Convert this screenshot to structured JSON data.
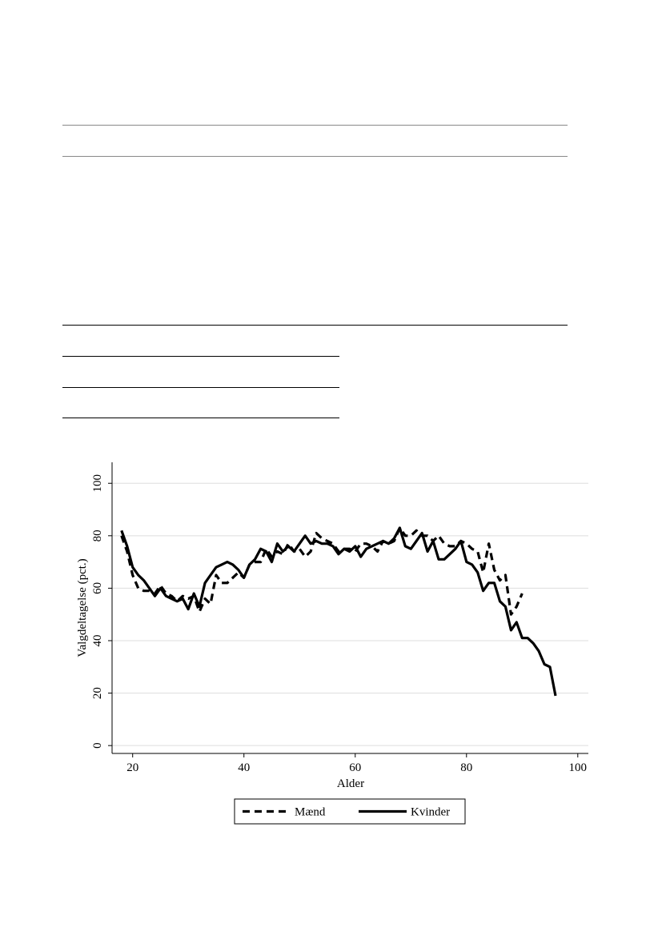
{
  "chart_data": {
    "type": "line",
    "xlabel": "Alder",
    "ylabel": "Valgdeltagelse (pct.)",
    "xlim": [
      16.3,
      101.9
    ],
    "ylim": [
      -3,
      108
    ],
    "xticks": [
      20,
      40,
      60,
      80,
      100
    ],
    "yticks": [
      0,
      20,
      40,
      60,
      80,
      100
    ],
    "grid": true,
    "legend": "bottom",
    "series": [
      {
        "name": "Mænd",
        "color": "#000000",
        "dash": true,
        "x": [
          18,
          19,
          20,
          21,
          22,
          23,
          24,
          25,
          26,
          27,
          28,
          29,
          30,
          31,
          32,
          33,
          34,
          35,
          36,
          37,
          38,
          39,
          40,
          41,
          42,
          43,
          44,
          45,
          46,
          47,
          48,
          49,
          50,
          51,
          52,
          53,
          54,
          55,
          56,
          57,
          58,
          59,
          60,
          61,
          62,
          63,
          64,
          65,
          66,
          67,
          68,
          69,
          70,
          71,
          72,
          73,
          74,
          75,
          76,
          77,
          78,
          79,
          80,
          81,
          82,
          83,
          84,
          85,
          86,
          87,
          88,
          89,
          90
        ],
        "values": [
          80,
          74,
          65,
          60,
          59,
          59,
          58,
          61,
          58,
          57,
          55,
          57,
          56,
          57,
          51,
          56,
          54,
          65,
          62,
          62,
          64,
          66,
          64,
          69,
          70,
          70,
          75,
          72,
          74,
          73,
          77,
          74,
          75,
          72,
          74,
          81,
          79,
          78,
          77,
          74,
          75,
          75,
          74,
          77,
          77,
          76,
          74,
          78,
          77,
          78,
          83,
          80,
          80,
          82,
          80,
          80,
          78,
          80,
          77,
          76,
          76,
          78,
          77,
          75,
          74,
          66,
          77,
          67,
          63,
          65,
          50,
          53,
          58
        ]
      },
      {
        "name": "Kvinder",
        "color": "#000000",
        "dash": false,
        "x": [
          18,
          19,
          20,
          21,
          22,
          23,
          24,
          25,
          26,
          27,
          28,
          29,
          30,
          31,
          32,
          33,
          34,
          35,
          36,
          37,
          38,
          39,
          40,
          41,
          42,
          43,
          44,
          45,
          46,
          47,
          48,
          49,
          50,
          51,
          52,
          53,
          54,
          55,
          56,
          57,
          58,
          59,
          60,
          61,
          62,
          63,
          64,
          65,
          66,
          67,
          68,
          69,
          70,
          71,
          72,
          73,
          74,
          75,
          76,
          77,
          78,
          79,
          80,
          81,
          82,
          83,
          84,
          85,
          86,
          87,
          88,
          89,
          90,
          91,
          92,
          93,
          94,
          95,
          96
        ],
        "values": [
          82,
          76,
          68,
          65,
          63,
          60,
          57,
          60,
          57,
          56,
          55,
          56,
          52,
          58,
          53,
          62,
          65,
          68,
          69,
          70,
          69,
          67,
          64,
          69,
          71,
          75,
          74,
          70,
          77,
          74,
          76,
          74,
          77,
          80,
          77,
          78,
          77,
          77,
          76,
          73,
          75,
          74,
          76,
          72,
          75,
          76,
          77,
          78,
          77,
          79,
          83,
          76,
          75,
          78,
          81,
          74,
          78,
          71,
          71,
          73,
          75,
          78,
          70,
          69,
          66,
          59,
          62,
          62,
          55,
          53,
          44,
          47,
          41,
          41,
          39,
          36,
          31,
          30,
          19
        ]
      }
    ]
  }
}
